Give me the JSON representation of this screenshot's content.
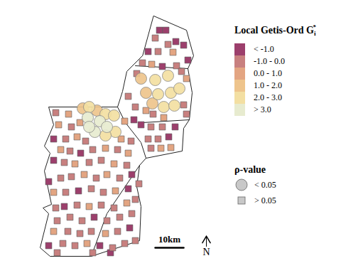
{
  "chart_data": {
    "type": "map",
    "tick_labels": false,
    "xlim": [
      0,
      62
    ],
    "ylim": [
      0,
      88
    ],
    "legend_title": {
      "text": "Local Getis-Ord G",
      "subscript": "i",
      "superscript": "*"
    },
    "series": [
      {
        "name": "< -1.0",
        "color": "#9c3f6c",
        "x": [
          43.5,
          45.75,
          39.5,
          49.25,
          52,
          44.5,
          53.5,
          37,
          49,
          46.75,
          34.5,
          6.25,
          15.75,
          6.25,
          4.5,
          33.75,
          15,
          32.5,
          10,
          20.5,
          33,
          4.5,
          22.5,
          26.25
        ],
        "y": [
          82,
          82,
          74.5,
          78,
          76.75,
          69.25,
          71.5,
          48.75,
          48,
          44.5,
          50.5,
          43.75,
          38.75,
          36.25,
          28.75,
          31.25,
          25.5,
          26.25,
          20,
          16.25,
          12.5,
          6.25,
          6.25,
          3.75
        ],
        "significant": [
          false,
          false,
          false,
          false,
          false,
          false,
          false,
          false,
          false,
          false,
          false,
          false,
          false,
          false,
          false,
          false,
          false,
          false,
          false,
          false,
          false,
          false,
          false,
          false
        ]
      },
      {
        "name": "-1.0 - 0.0",
        "color": "#c8807f",
        "x": [
          42,
          43,
          46.5,
          37.5,
          49.5,
          35.5,
          51.25,
          32.5,
          35,
          41.25,
          52,
          53,
          40.5,
          44.5,
          39.5,
          43,
          40.5,
          7,
          12.5,
          10.5,
          17.5,
          33.5,
          12,
          20,
          28.75,
          10,
          18.75,
          23,
          32,
          8.75,
          12.5,
          21.25,
          29.5,
          36.25,
          10.5,
          19.5,
          23.75,
          7,
          14.5,
          23,
          27.5,
          35,
          7.5,
          12,
          16.25,
          25,
          29.5,
          33.75,
          11.25,
          15.5,
          19.5,
          28.75,
          9.5,
          13.75,
          27,
          31.25,
          35,
          7.5,
          20
        ],
        "y": [
          79.25,
          74.5,
          77,
          70.5,
          69.5,
          66.75,
          67.5,
          58.75,
          55,
          52.5,
          55.75,
          52.5,
          48,
          48,
          43.75,
          43.75,
          40.5,
          53,
          48,
          43.75,
          43,
          43,
          39.5,
          40,
          40,
          35.5,
          35.5,
          36.25,
          34.5,
          30,
          30.5,
          30,
          30,
          28,
          25,
          26.25,
          25,
          19.5,
          20.5,
          20.5,
          19.5,
          22.5,
          15,
          16.25,
          15,
          15,
          16.25,
          17.5,
          11.25,
          10.5,
          11.25,
          11.25,
          7,
          6.25,
          5.5,
          7,
          8,
          3.75,
          3.75
        ],
        "significant": [
          false,
          false,
          false,
          false,
          false,
          false,
          false,
          false,
          false,
          false,
          false,
          false,
          false,
          false,
          false,
          false,
          false,
          false,
          false,
          false,
          false,
          false,
          false,
          false,
          false,
          false,
          false,
          false,
          false,
          false,
          false,
          false,
          false,
          false,
          false,
          false,
          false,
          false,
          false,
          false,
          false,
          false,
          false,
          false,
          false,
          false,
          false,
          false,
          false,
          false,
          false,
          false,
          false,
          false,
          false,
          false,
          false,
          false,
          false
        ]
      },
      {
        "name": "0.0 - 1.0",
        "color": "#e3a582",
        "x": [
          48.25,
          40.75,
          53,
          38.75,
          45,
          31.25,
          44,
          47.5,
          11.5,
          8,
          15.5,
          14.5,
          30,
          8.75,
          24.5,
          32.5,
          13.75,
          27.5,
          17,
          25,
          6.25,
          28,
          18.75,
          32,
          6.25,
          24.5,
          18
        ],
        "y": [
          74.25,
          70,
          65,
          53.75,
          51.25,
          50,
          40.5,
          40.75,
          52.5,
          48.75,
          49.5,
          44.5,
          43.75,
          40,
          40.5,
          38.75,
          35,
          35,
          31.25,
          31.25,
          25,
          25.5,
          20,
          21.25,
          11.25,
          10.5,
          7
        ],
        "significant": [
          false,
          false,
          false,
          false,
          false,
          false,
          false,
          false,
          false,
          false,
          false,
          false,
          false,
          false,
          false,
          false,
          false,
          false,
          false,
          false,
          false,
          false,
          false,
          false,
          false,
          false,
          false
        ]
      },
      {
        "name": "1.0 - 2.0",
        "color": "#eec48c",
        "x": [
          16.5,
          21.5,
          37,
          38.75,
          41
        ],
        "y": [
          54.5,
          53.75,
          65,
          60,
          56.25
        ],
        "significant": [
          true,
          true,
          true,
          true,
          true
        ]
      },
      {
        "name": "2.0 - 3.0",
        "color": "#f3dfa2",
        "x": [
          18.75,
          24.5,
          27.5,
          28,
          24.5,
          42,
          46.5,
          43,
          47.5,
          50.5,
          45,
          48.75
        ],
        "y": [
          55,
          52.5,
          52,
          46.25,
          45,
          64.5,
          66,
          59.5,
          60,
          61.5,
          55,
          55.5
        ],
        "significant": [
          true,
          true,
          true,
          true,
          true,
          true,
          true,
          true,
          true,
          true,
          true,
          true
        ]
      },
      {
        "name": "> 3.0",
        "color": "#e7ebcf",
        "x": [
          18.25,
          22.5,
          25,
          20.75,
          18.75
        ],
        "y": [
          51.25,
          50,
          48,
          46.25,
          48
        ],
        "significant": [
          true,
          true,
          true,
          true,
          true
        ]
      }
    ],
    "marker_legend": {
      "title": "ρ-value",
      "entries": [
        {
          "label": "< 0.05",
          "marker": "circle",
          "significant": true
        },
        {
          "label": "> 0.05",
          "marker": "square",
          "significant": false
        }
      ]
    },
    "boundaries": {
      "outline": [
        [
          41.5,
          87
        ],
        [
          53,
          82
        ],
        [
          55.5,
          73
        ],
        [
          53.5,
          68.5
        ],
        [
          55,
          60
        ],
        [
          54,
          50.5
        ],
        [
          52,
          47.5
        ],
        [
          51.5,
          39.5
        ],
        [
          38.75,
          37
        ],
        [
          36.5,
          34.5
        ],
        [
          35.5,
          27
        ],
        [
          37,
          20
        ],
        [
          36.5,
          8
        ],
        [
          19.5,
          2.5
        ],
        [
          5,
          2.5
        ],
        [
          1.5,
          5.5
        ],
        [
          4.5,
          17.5
        ],
        [
          2.5,
          19.5
        ],
        [
          5.5,
          20.75
        ],
        [
          3,
          32.5
        ],
        [
          5,
          38.75
        ],
        [
          3,
          41.25
        ],
        [
          6.25,
          48.75
        ],
        [
          4.5,
          55
        ],
        [
          28.75,
          55
        ],
        [
          30.5,
          60.5
        ],
        [
          32,
          67.5
        ],
        [
          37.5,
          73
        ]
      ],
      "divides": [
        [
          [
            35,
            69.5
          ],
          [
            53.5,
            68.5
          ]
        ],
        [
          [
            28.75,
            55
          ],
          [
            31.5,
            49.5
          ],
          [
            37,
            42.5
          ],
          [
            38.75,
            37
          ]
        ],
        [
          [
            37.5,
            49.5
          ],
          [
            54,
            50.5
          ]
        ],
        [
          [
            36.5,
            34.5
          ],
          [
            25,
            17.5
          ],
          [
            19.5,
            2.5
          ]
        ]
      ]
    },
    "scale_bar": {
      "length": 10,
      "label": "10km"
    },
    "north_label": "N"
  }
}
